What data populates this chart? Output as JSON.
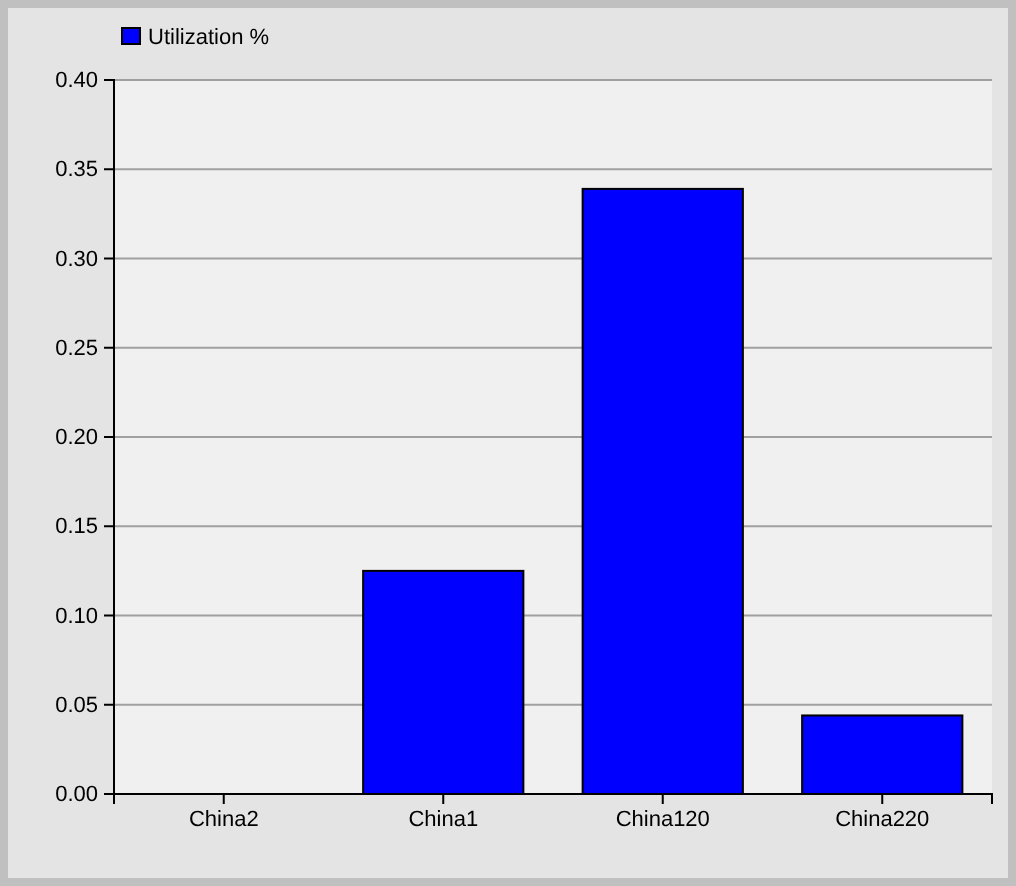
{
  "chart_data": {
    "type": "bar",
    "categories": [
      "China2",
      "China1",
      "China120",
      "China220"
    ],
    "series": [
      {
        "name": "Utilization %",
        "color": "#0000ff",
        "values": [
          0,
          0.125,
          0.339,
          0.044
        ]
      }
    ],
    "ylim": [
      0,
      0.4
    ],
    "yticks": [
      {
        "value": 0,
        "label": "0.00"
      },
      {
        "value": 0.05,
        "label": "0.05"
      },
      {
        "value": 0.1,
        "label": "0.10"
      },
      {
        "value": 0.15,
        "label": "0.15"
      },
      {
        "value": 0.2,
        "label": "0.20"
      },
      {
        "value": 0.25,
        "label": "0.25"
      },
      {
        "value": 0.3,
        "label": "0.30"
      },
      {
        "value": 0.35,
        "label": "0.35"
      },
      {
        "value": 0.4,
        "label": "0.40"
      }
    ],
    "grid": "y",
    "legend": "top left"
  }
}
